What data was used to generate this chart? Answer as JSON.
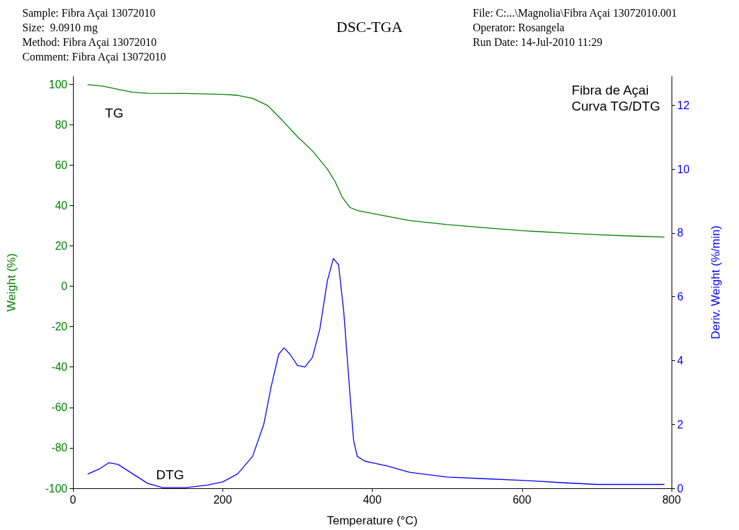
{
  "chart_data": {
    "type": "line",
    "title": "DSC-TGA",
    "xlabel": "Temperature (°C)",
    "ylabel": "Weight (%)",
    "y2label": "Deriv. Weight (%/min)",
    "annotations": [
      "Sample: Fibra Açai 13072010",
      "Size:  9.0910 mg",
      "Method: Fibra Açai 13072010",
      "Comment: Fibra Açai 13072010",
      "File: C:...\\Magnolia\\Fibra Açai 13072010.001",
      "Operator: Rosangela",
      "Run Date: 14-Jul-2010 11:29",
      "Fibra de Açai\nCurva TG/DTG"
    ],
    "xlim": [
      0,
      800
    ],
    "xticks": [
      0,
      200,
      400,
      600,
      800
    ],
    "ylim": [
      -100,
      103.8
    ],
    "yticks": [
      -100,
      -80,
      -60,
      -40,
      -20,
      0,
      20,
      40,
      60,
      80,
      100
    ],
    "y2lim": [
      0,
      12.9
    ],
    "y2ticks": [
      0,
      2,
      4,
      6,
      8,
      10,
      12
    ],
    "grid": false,
    "legend": false,
    "marker": "none",
    "line_style": "solid",
    "series": [
      {
        "name": "TG",
        "color": "#008000",
        "x": [
          20,
          40,
          60,
          80,
          100,
          150,
          200,
          220,
          240,
          260,
          280,
          300,
          320,
          340,
          350,
          360,
          370,
          380,
          400,
          450,
          500,
          550,
          600,
          650,
          700,
          750,
          790
        ],
        "values": [
          99.8,
          99,
          97.5,
          96,
          95.5,
          95.4,
          95,
          94.5,
          93,
          89.5,
          82,
          74,
          67,
          58,
          52,
          44,
          39,
          37.5,
          36,
          32.5,
          30.5,
          29,
          27.5,
          26.5,
          25.5,
          24.8,
          24.3
        ]
      },
      {
        "name": "DTG",
        "color": "#0000ff",
        "axis": "y2",
        "x": [
          20,
          35,
          48,
          60,
          80,
          100,
          120,
          150,
          180,
          200,
          220,
          240,
          255,
          265,
          275,
          282,
          290,
          300,
          310,
          320,
          330,
          340,
          348,
          355,
          362,
          370,
          375,
          380,
          390,
          400,
          420,
          450,
          500,
          550,
          600,
          650,
          700,
          750,
          790
        ],
        "values": [
          0.45,
          0.6,
          0.8,
          0.75,
          0.45,
          0.15,
          0.02,
          0.02,
          0.1,
          0.2,
          0.45,
          1.0,
          2.0,
          3.2,
          4.2,
          4.4,
          4.2,
          3.85,
          3.8,
          4.1,
          5.0,
          6.5,
          7.2,
          7.0,
          5.5,
          3.0,
          1.5,
          1.0,
          0.85,
          0.8,
          0.7,
          0.5,
          0.35,
          0.3,
          0.25,
          0.18,
          0.12,
          0.12,
          0.12
        ]
      }
    ]
  }
}
